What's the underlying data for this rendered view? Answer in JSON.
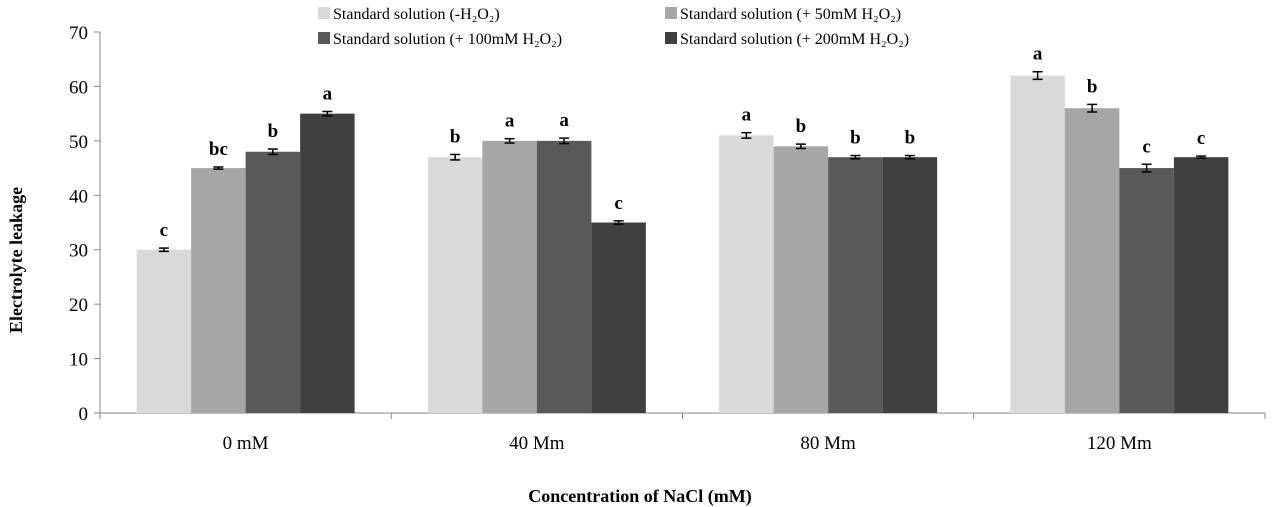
{
  "chart_data": {
    "type": "bar",
    "title": "",
    "xlabel": "Concentration of NaCl (mM)",
    "ylabel": "Electrolyte leakage",
    "ylim": [
      0,
      70
    ],
    "yticks": [
      0,
      10,
      20,
      30,
      40,
      50,
      60,
      70
    ],
    "grid": false,
    "legend_position": "top",
    "categories": [
      "0 mM",
      "40 Mm",
      "80 Mm",
      "120 Mm"
    ],
    "series": [
      {
        "name": "Standard solution (-H₂O₂)",
        "color": "#d9d9d9",
        "values": [
          30,
          47,
          51,
          62
        ],
        "errors": [
          0.3,
          0.5,
          0.5,
          0.7
        ],
        "labels": [
          "c",
          "b",
          "a",
          "a"
        ]
      },
      {
        "name": "Standard solution (+ 50mM H₂O₂)",
        "color": "#a6a6a6",
        "values": [
          45,
          50,
          49,
          56
        ],
        "errors": [
          0.2,
          0.4,
          0.4,
          0.7
        ],
        "labels": [
          "bc",
          "a",
          "b",
          "b"
        ]
      },
      {
        "name": "Standard solution (+ 100mM H₂O₂)",
        "color": "#595959",
        "values": [
          48,
          50,
          47,
          45
        ],
        "errors": [
          0.5,
          0.5,
          0.3,
          0.7
        ],
        "labels": [
          "b",
          "a",
          "b",
          "c"
        ]
      },
      {
        "name": "Standard solution (+ 200mM H₂O₂)",
        "color": "#404040",
        "values": [
          55,
          35,
          47,
          47
        ],
        "errors": [
          0.4,
          0.3,
          0.3,
          0.2
        ],
        "labels": [
          "a",
          "c",
          "b",
          "c"
        ]
      }
    ]
  }
}
